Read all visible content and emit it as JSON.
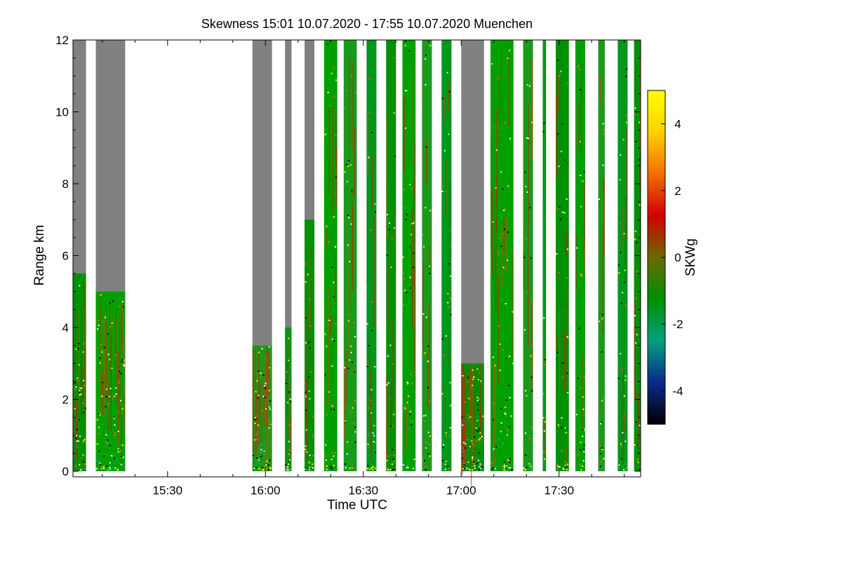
{
  "chart_data": {
    "type": "heatmap",
    "title": "Skewness   15:01 10.07.2020 - 17:55 10.07.2020 Muenchen",
    "xlabel": "Time UTC",
    "ylabel": "Range km",
    "xlim": [
      "15:01",
      "17:55"
    ],
    "ylim": [
      0,
      12
    ],
    "x_ticks": [
      "15:30",
      "16:00",
      "16:30",
      "17:00",
      "17:30"
    ],
    "y_ticks": [
      0,
      2,
      4,
      6,
      8,
      10,
      12
    ],
    "colorbar": {
      "label": "SKWg",
      "range": [
        -5,
        5
      ],
      "ticks": [
        -4,
        -2,
        0,
        2,
        4
      ],
      "colors": [
        "#000000",
        "#0a2a8a",
        "#00a080",
        "#009000",
        "#6a6a00",
        "#d00000",
        "#f07000",
        "#ffd000",
        "#ffff00"
      ]
    },
    "background_color": "#808080",
    "no_data_color": "#ffffff",
    "segments": [
      {
        "start": "15:01",
        "end": "15:05",
        "gray_above_km": 5.5
      },
      {
        "start": "15:08",
        "end": "15:17",
        "gray_above_km": 5.0
      },
      {
        "start": "15:56",
        "end": "16:02",
        "gray_above_km": 3.5
      },
      {
        "start": "16:06",
        "end": "16:08",
        "gray_above_km": 4.0
      },
      {
        "start": "16:12",
        "end": "16:15",
        "gray_above_km": 7.0
      },
      {
        "start": "16:18",
        "end": "16:22",
        "gray_above_km": 12
      },
      {
        "start": "16:24",
        "end": "16:28",
        "gray_above_km": 12
      },
      {
        "start": "16:31",
        "end": "16:34",
        "gray_above_km": 12
      },
      {
        "start": "16:37",
        "end": "16:40",
        "gray_above_km": 12
      },
      {
        "start": "16:42",
        "end": "16:46",
        "gray_above_km": 12
      },
      {
        "start": "16:48",
        "end": "16:51",
        "gray_above_km": 12
      },
      {
        "start": "16:54",
        "end": "16:57",
        "gray_above_km": 12
      },
      {
        "start": "17:00",
        "end": "17:07",
        "gray_above_km": 3.0
      },
      {
        "start": "17:09",
        "end": "17:16",
        "gray_above_km": 12
      },
      {
        "start": "17:19",
        "end": "17:22",
        "gray_above_km": 12
      },
      {
        "start": "17:25",
        "end": "17:26",
        "gray_above_km": 12
      },
      {
        "start": "17:29",
        "end": "17:33",
        "gray_above_km": 12
      },
      {
        "start": "17:35",
        "end": "17:38",
        "gray_above_km": 12
      },
      {
        "start": "17:42",
        "end": "17:44",
        "gray_above_km": 12
      },
      {
        "start": "17:48",
        "end": "17:51",
        "gray_above_km": 12
      },
      {
        "start": "17:53",
        "end": "17:55",
        "gray_above_km": 12
      }
    ]
  }
}
